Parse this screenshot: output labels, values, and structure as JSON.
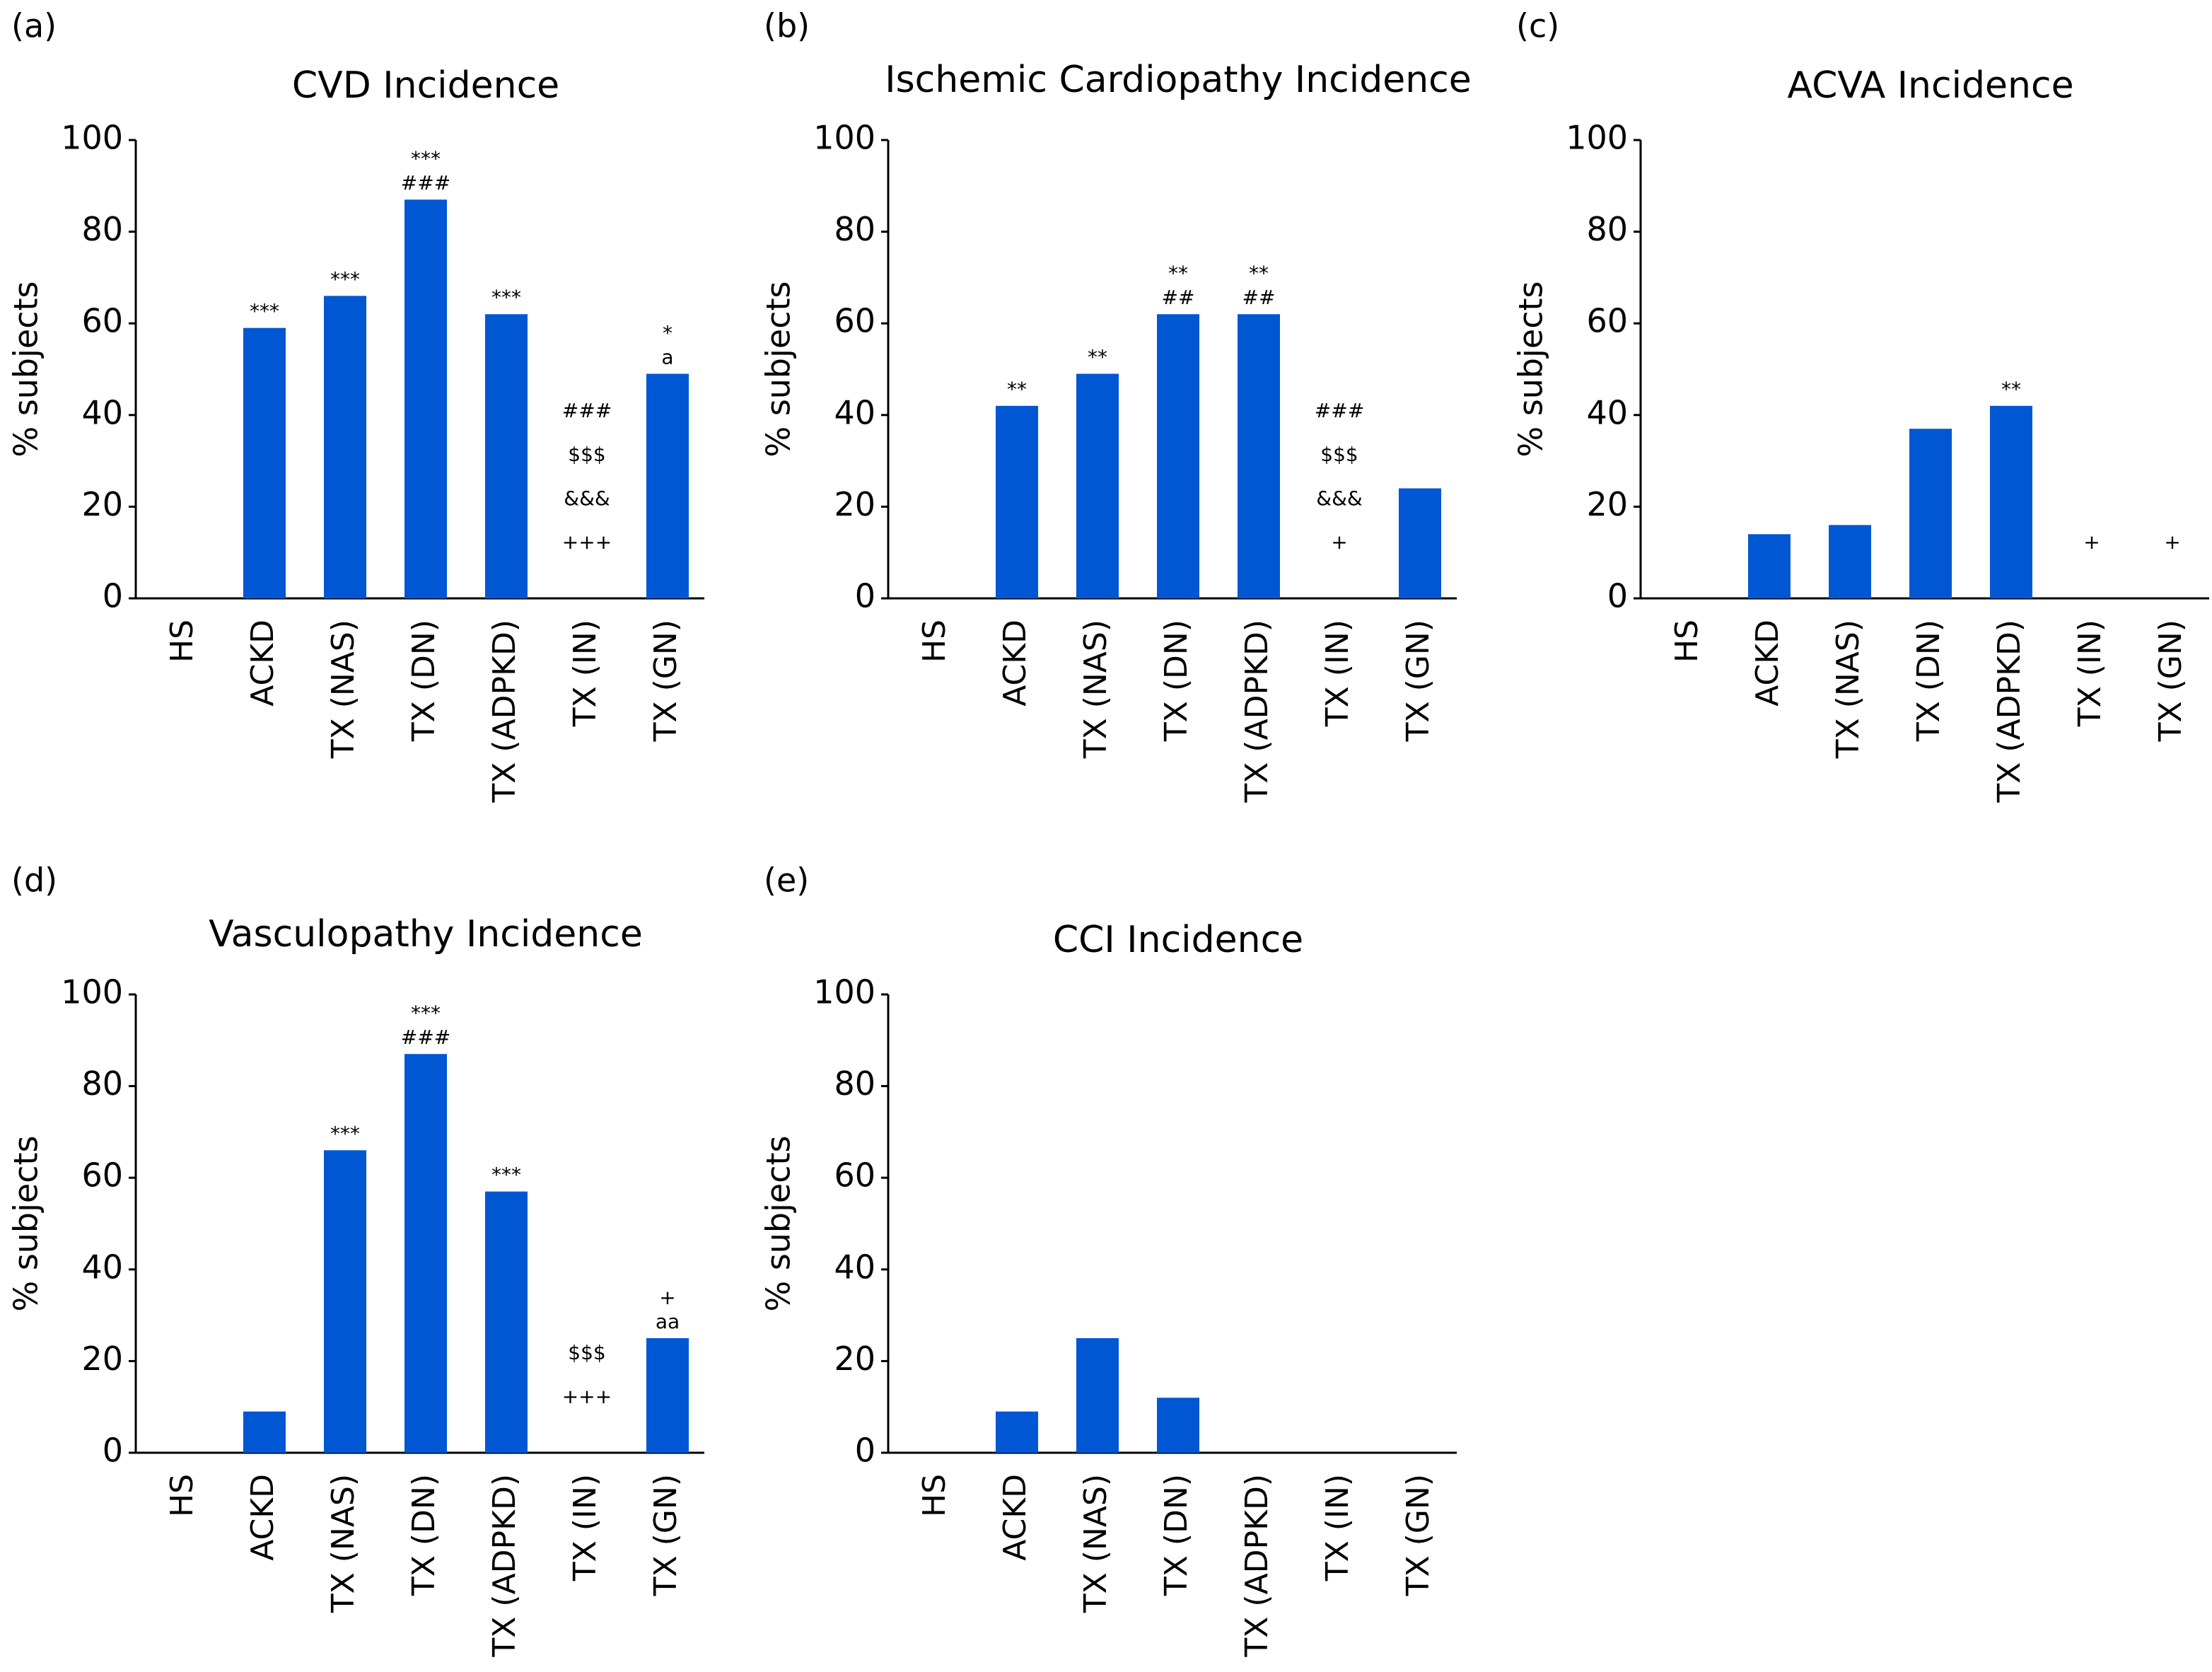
{
  "chart_data": [
    {
      "type": "bar",
      "panel": "(a)",
      "title": "CVD Incidence",
      "ylabel": "% subjects",
      "color": "#0057d3",
      "categories": [
        "HS",
        "ACKD",
        "TX (NAS)",
        "TX (DN)",
        "TX (ADPKD)",
        "TX (IN)",
        "TX (GN)"
      ],
      "values": [
        0,
        59,
        66,
        87,
        62,
        0,
        49
      ],
      "annotations": [
        [],
        [
          "***"
        ],
        [
          "***"
        ],
        [
          "***",
          "###"
        ],
        [
          "***"
        ],
        [
          "###",
          "$$$",
          "&&&",
          "+++"
        ],
        [
          "*",
          "a"
        ]
      ],
      "ylim": [
        0,
        100
      ],
      "yticks": [
        0,
        20,
        40,
        60,
        80,
        100
      ]
    },
    {
      "type": "bar",
      "panel": "(b)",
      "title": "Ischemic Cardiopathy Incidence",
      "ylabel": "% subjects",
      "color": "#0057d3",
      "categories": [
        "HS",
        "ACKD",
        "TX (NAS)",
        "TX (DN)",
        "TX (ADPKD)",
        "TX (IN)",
        "TX (GN)"
      ],
      "values": [
        0,
        42,
        49,
        62,
        62,
        0,
        24
      ],
      "annotations": [
        [],
        [
          "**"
        ],
        [
          "**"
        ],
        [
          "**",
          "##"
        ],
        [
          "**",
          "##"
        ],
        [
          "###",
          "$$$",
          "&&&",
          "+"
        ],
        []
      ],
      "ylim": [
        0,
        100
      ],
      "yticks": [
        0,
        20,
        40,
        60,
        80,
        100
      ]
    },
    {
      "type": "bar",
      "panel": "(c)",
      "title": "ACVA Incidence",
      "ylabel": "% subjects",
      "color": "#0057d3",
      "categories": [
        "HS",
        "ACKD",
        "TX (NAS)",
        "TX (DN)",
        "TX (ADPKD)",
        "TX (IN)",
        "TX (GN)"
      ],
      "values": [
        0,
        14,
        16,
        37,
        42,
        0,
        0
      ],
      "annotations": [
        [],
        [],
        [],
        [],
        [
          "**"
        ],
        [
          "+"
        ],
        [
          "+"
        ]
      ],
      "ylim": [
        0,
        100
      ],
      "yticks": [
        0,
        20,
        40,
        60,
        80,
        100
      ]
    },
    {
      "type": "bar",
      "panel": "(d)",
      "title": "Vasculopathy Incidence",
      "ylabel": "% subjects",
      "color": "#0057d3",
      "categories": [
        "HS",
        "ACKD",
        "TX (NAS)",
        "TX (DN)",
        "TX (ADPKD)",
        "TX (IN)",
        "TX (GN)"
      ],
      "values": [
        0,
        9,
        66,
        87,
        57,
        0,
        25
      ],
      "annotations": [
        [],
        [],
        [
          "***"
        ],
        [
          "***",
          "###"
        ],
        [
          "***"
        ],
        [
          "$$$",
          "+++"
        ],
        [
          "+",
          "aa"
        ]
      ],
      "ylim": [
        0,
        100
      ],
      "yticks": [
        0,
        20,
        40,
        60,
        80,
        100
      ]
    },
    {
      "type": "bar",
      "panel": "(e)",
      "title": "CCI Incidence",
      "ylabel": "% subjects",
      "color": "#0057d3",
      "categories": [
        "HS",
        "ACKD",
        "TX (NAS)",
        "TX (DN)",
        "TX (ADPKD)",
        "TX (IN)",
        "TX (GN)"
      ],
      "values": [
        0,
        9,
        25,
        12,
        0,
        0,
        0
      ],
      "annotations": [
        [],
        [],
        [],
        [],
        [],
        [],
        []
      ],
      "ylim": [
        0,
        100
      ],
      "yticks": [
        0,
        20,
        40,
        60,
        80,
        100
      ]
    }
  ]
}
